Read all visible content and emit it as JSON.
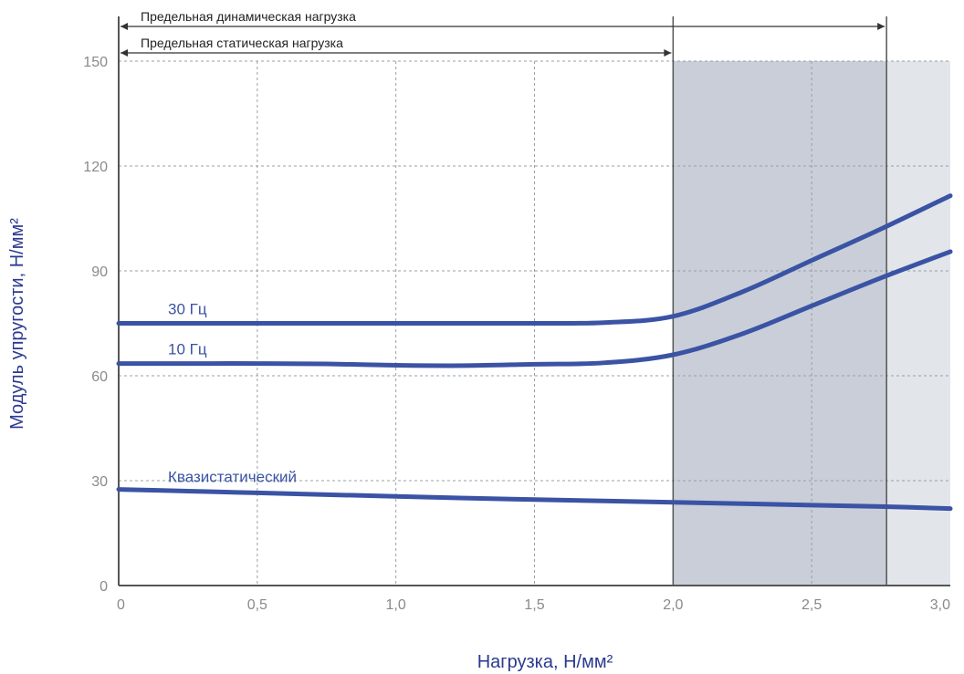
{
  "chart_data": {
    "type": "line",
    "xlabel": "Нагрузка, Н/мм²",
    "ylabel": "Модуль упругости, Н/мм²",
    "xlim": [
      0,
      3.0
    ],
    "ylim": [
      0,
      150
    ],
    "x_ticks": [
      "0",
      "0,5",
      "1,0",
      "1,5",
      "2,0",
      "2,5",
      "3,0"
    ],
    "y_ticks": [
      "0",
      "30",
      "60",
      "90",
      "120",
      "150"
    ],
    "grid": true,
    "series": [
      {
        "name": "30 Гц",
        "x": [
          0,
          0.25,
          0.5,
          0.75,
          1.0,
          1.25,
          1.5,
          1.75,
          2.0,
          2.25,
          2.5,
          2.75,
          3.0
        ],
        "y": [
          75,
          75,
          75,
          75,
          75,
          75,
          75,
          75.2,
          77,
          84,
          93,
          102,
          111.5
        ]
      },
      {
        "name": "10 Гц",
        "x": [
          0,
          0.25,
          0.5,
          0.75,
          1.0,
          1.25,
          1.5,
          1.75,
          2.0,
          2.25,
          2.5,
          2.75,
          3.0
        ],
        "y": [
          63.5,
          63.5,
          63.5,
          63.4,
          63,
          62.9,
          63.3,
          63.7,
          66,
          72,
          80,
          88,
          95.5
        ]
      },
      {
        "name": "Квазистатический",
        "x": [
          0,
          0.25,
          0.5,
          0.75,
          1.0,
          1.25,
          1.5,
          1.75,
          2.0,
          2.25,
          2.5,
          2.75,
          3.0
        ],
        "y": [
          27.5,
          27,
          26.5,
          26,
          25.5,
          25,
          24.6,
          24.2,
          23.8,
          23.4,
          23,
          22.6,
          22
        ]
      }
    ],
    "series_color": "#3a53a4",
    "shaded_regions": [
      {
        "from": 2.0,
        "to": 2.77,
        "color": "#c9ced8"
      },
      {
        "from": 2.77,
        "to": 3.0,
        "color": "#e2e5ea"
      }
    ],
    "range_annotations": [
      {
        "label": "Предельная динамическая нагрузка",
        "from": 0,
        "to": 2.77
      },
      {
        "label": "Предельная статическая нагрузка",
        "from": 0,
        "to": 2.0
      }
    ]
  }
}
